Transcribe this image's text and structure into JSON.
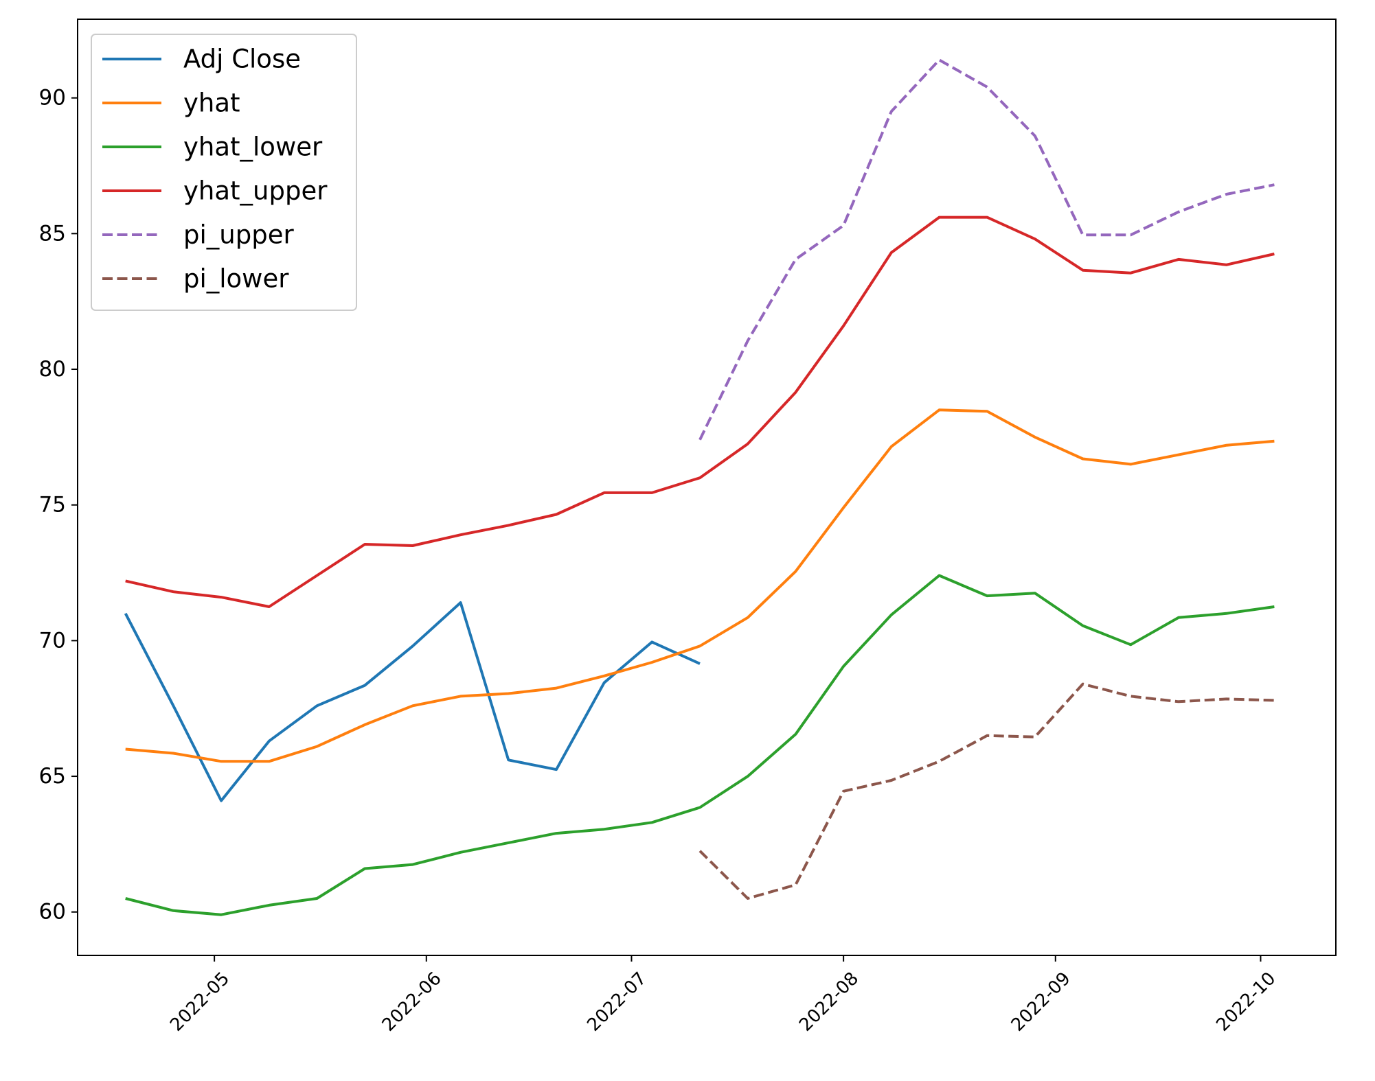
{
  "chart_data": {
    "type": "line",
    "title": "",
    "xlabel": "",
    "ylabel": "",
    "x_ticks": [
      "2022-05",
      "2022-06",
      "2022-07",
      "2022-08",
      "2022-09",
      "2022-10"
    ],
    "y_ticks": [
      "60",
      "65",
      "70",
      "75",
      "80",
      "85",
      "90"
    ],
    "xlim": [
      "2022-04-11",
      "2022-10-12"
    ],
    "ylim": [
      58.4,
      92.9
    ],
    "grid": false,
    "legend": "top-left",
    "series": [
      {
        "name": "Adj Close",
        "color": "#1f77b4",
        "style": "solid",
        "points": [
          [
            "2022-04-18",
            71.0
          ],
          [
            "2022-04-25",
            67.6
          ],
          [
            "2022-05-02",
            64.1
          ],
          [
            "2022-05-09",
            66.3
          ],
          [
            "2022-05-16",
            67.6
          ],
          [
            "2022-05-23",
            68.35
          ],
          [
            "2022-05-30",
            69.8
          ],
          [
            "2022-06-06",
            71.4
          ],
          [
            "2022-06-13",
            65.6
          ],
          [
            "2022-06-20",
            65.25
          ],
          [
            "2022-06-27",
            68.45
          ],
          [
            "2022-07-04",
            69.95
          ],
          [
            "2022-07-11",
            69.15
          ]
        ]
      },
      {
        "name": "yhat",
        "color": "#ff7f0e",
        "style": "solid",
        "points": [
          [
            "2022-04-18",
            66.0
          ],
          [
            "2022-04-25",
            65.85
          ],
          [
            "2022-05-02",
            65.55
          ],
          [
            "2022-05-09",
            65.55
          ],
          [
            "2022-05-16",
            66.1
          ],
          [
            "2022-05-23",
            66.9
          ],
          [
            "2022-05-30",
            67.6
          ],
          [
            "2022-06-06",
            67.95
          ],
          [
            "2022-06-13",
            68.05
          ],
          [
            "2022-06-20",
            68.25
          ],
          [
            "2022-06-27",
            68.7
          ],
          [
            "2022-07-04",
            69.2
          ],
          [
            "2022-07-11",
            69.8
          ],
          [
            "2022-07-18",
            70.85
          ],
          [
            "2022-07-25",
            72.55
          ],
          [
            "2022-08-01",
            74.9
          ],
          [
            "2022-08-08",
            77.15
          ],
          [
            "2022-08-15",
            78.5
          ],
          [
            "2022-08-22",
            78.45
          ],
          [
            "2022-08-29",
            77.5
          ],
          [
            "2022-09-05",
            76.7
          ],
          [
            "2022-09-12",
            76.5
          ],
          [
            "2022-09-19",
            76.85
          ],
          [
            "2022-09-26",
            77.2
          ],
          [
            "2022-10-03",
            77.35
          ]
        ]
      },
      {
        "name": "yhat_lower",
        "color": "#2ca02c",
        "style": "solid",
        "points": [
          [
            "2022-04-18",
            60.5
          ],
          [
            "2022-04-25",
            60.05
          ],
          [
            "2022-05-02",
            59.9
          ],
          [
            "2022-05-09",
            60.25
          ],
          [
            "2022-05-16",
            60.5
          ],
          [
            "2022-05-23",
            61.6
          ],
          [
            "2022-05-30",
            61.75
          ],
          [
            "2022-06-06",
            62.2
          ],
          [
            "2022-06-13",
            62.55
          ],
          [
            "2022-06-20",
            62.9
          ],
          [
            "2022-06-27",
            63.05
          ],
          [
            "2022-07-04",
            63.3
          ],
          [
            "2022-07-11",
            63.85
          ],
          [
            "2022-07-18",
            65.0
          ],
          [
            "2022-07-25",
            66.55
          ],
          [
            "2022-08-01",
            69.05
          ],
          [
            "2022-08-08",
            70.95
          ],
          [
            "2022-08-15",
            72.4
          ],
          [
            "2022-08-22",
            71.65
          ],
          [
            "2022-08-29",
            71.75
          ],
          [
            "2022-09-05",
            70.55
          ],
          [
            "2022-09-12",
            69.85
          ],
          [
            "2022-09-19",
            70.85
          ],
          [
            "2022-09-26",
            71.0
          ],
          [
            "2022-10-03",
            71.25
          ]
        ]
      },
      {
        "name": "yhat_upper",
        "color": "#d62728",
        "style": "solid",
        "points": [
          [
            "2022-04-18",
            72.2
          ],
          [
            "2022-04-25",
            71.8
          ],
          [
            "2022-05-02",
            71.6
          ],
          [
            "2022-05-09",
            71.25
          ],
          [
            "2022-05-16",
            72.4
          ],
          [
            "2022-05-23",
            73.55
          ],
          [
            "2022-05-30",
            73.5
          ],
          [
            "2022-06-06",
            73.9
          ],
          [
            "2022-06-13",
            74.25
          ],
          [
            "2022-06-20",
            74.65
          ],
          [
            "2022-06-27",
            75.45
          ],
          [
            "2022-07-04",
            75.45
          ],
          [
            "2022-07-11",
            76.0
          ],
          [
            "2022-07-18",
            77.25
          ],
          [
            "2022-07-25",
            79.15
          ],
          [
            "2022-08-01",
            81.6
          ],
          [
            "2022-08-08",
            84.3
          ],
          [
            "2022-08-15",
            85.6
          ],
          [
            "2022-08-22",
            85.6
          ],
          [
            "2022-08-29",
            84.8
          ],
          [
            "2022-09-05",
            83.65
          ],
          [
            "2022-09-12",
            83.55
          ],
          [
            "2022-09-19",
            84.05
          ],
          [
            "2022-09-26",
            83.85
          ],
          [
            "2022-10-03",
            84.25
          ]
        ]
      },
      {
        "name": "pi_upper",
        "color": "#9467bd",
        "style": "dashed",
        "points": [
          [
            "2022-07-11",
            77.4
          ],
          [
            "2022-07-18",
            81.05
          ],
          [
            "2022-07-25",
            84.05
          ],
          [
            "2022-08-01",
            85.3
          ],
          [
            "2022-08-08",
            89.5
          ],
          [
            "2022-08-15",
            91.4
          ],
          [
            "2022-08-22",
            90.4
          ],
          [
            "2022-08-29",
            88.6
          ],
          [
            "2022-09-05",
            84.95
          ],
          [
            "2022-09-12",
            84.95
          ],
          [
            "2022-09-19",
            85.8
          ],
          [
            "2022-09-26",
            86.45
          ],
          [
            "2022-10-03",
            86.8
          ]
        ]
      },
      {
        "name": "pi_lower",
        "color": "#8c564b",
        "style": "dashed",
        "points": [
          [
            "2022-07-11",
            62.25
          ],
          [
            "2022-07-18",
            60.5
          ],
          [
            "2022-07-25",
            61.0
          ],
          [
            "2022-08-01",
            64.45
          ],
          [
            "2022-08-08",
            64.85
          ],
          [
            "2022-08-15",
            65.55
          ],
          [
            "2022-08-22",
            66.5
          ],
          [
            "2022-08-29",
            66.45
          ],
          [
            "2022-09-05",
            68.4
          ],
          [
            "2022-09-12",
            67.95
          ],
          [
            "2022-09-19",
            67.75
          ],
          [
            "2022-09-26",
            67.85
          ],
          [
            "2022-10-03",
            67.8
          ]
        ]
      }
    ]
  }
}
